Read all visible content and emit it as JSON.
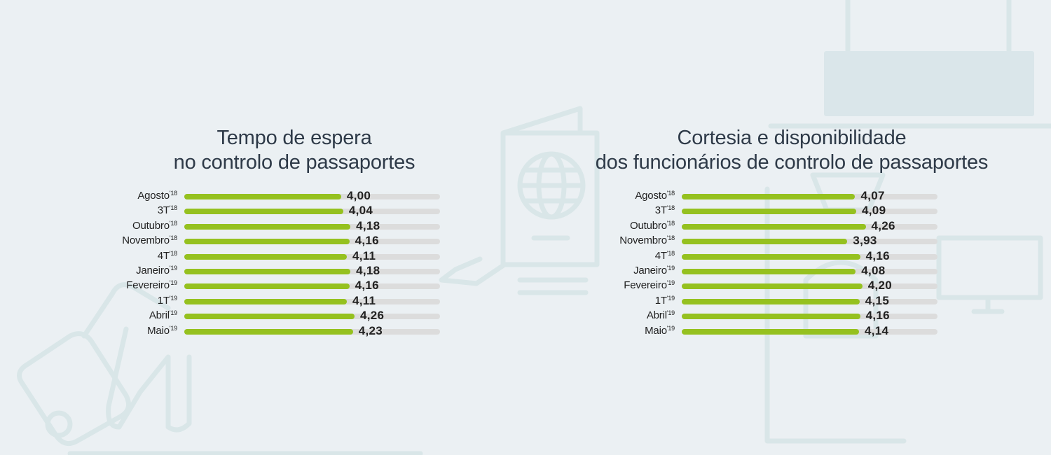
{
  "colors": {
    "bar": "#95c11f",
    "track": "#dcdcdc",
    "background": "#ebf0f3",
    "illustration": "#d9e6e8"
  },
  "chart_data": [
    {
      "type": "bar",
      "orientation": "horizontal",
      "title": [
        "Tempo de espera",
        "no controlo de passaportes"
      ],
      "categories": [
        {
          "name": "Agosto",
          "suffix": "'18"
        },
        {
          "name": "3T",
          "suffix": "'18"
        },
        {
          "name": "Outubro",
          "suffix": "'18"
        },
        {
          "name": "Novembro",
          "suffix": "'18"
        },
        {
          "name": "4T",
          "suffix": "'18"
        },
        {
          "name": "Janeiro",
          "suffix": "'19"
        },
        {
          "name": "Fevereiro",
          "suffix": "'19"
        },
        {
          "name": "1T",
          "suffix": "'19"
        },
        {
          "name": "Abril",
          "suffix": "'19"
        },
        {
          "name": "Maio",
          "suffix": "'19"
        }
      ],
      "values": [
        4.0,
        4.04,
        4.18,
        4.16,
        4.11,
        4.18,
        4.16,
        4.11,
        4.26,
        4.23
      ],
      "value_labels": [
        "4,00",
        "4,04",
        "4,18",
        "4,16",
        "4,11",
        "4,18",
        "4,16",
        "4,11",
        "4,26",
        "4,23"
      ],
      "xlim": [
        1,
        5
      ]
    },
    {
      "type": "bar",
      "orientation": "horizontal",
      "title": [
        "Cortesia e disponibilidade",
        "dos funcionários de controlo de passaportes"
      ],
      "categories": [
        {
          "name": "Agosto",
          "suffix": "'18"
        },
        {
          "name": "3T",
          "suffix": "'18"
        },
        {
          "name": "Outubro",
          "suffix": "'18"
        },
        {
          "name": "Novembro",
          "suffix": "'18"
        },
        {
          "name": "4T",
          "suffix": "'18"
        },
        {
          "name": "Janeiro",
          "suffix": "'19"
        },
        {
          "name": "Fevereiro",
          "suffix": "'19"
        },
        {
          "name": "1T",
          "suffix": "'19"
        },
        {
          "name": "Abril",
          "suffix": "'19"
        },
        {
          "name": "Maio",
          "suffix": "'19"
        }
      ],
      "values": [
        4.07,
        4.09,
        4.26,
        3.93,
        4.16,
        4.08,
        4.2,
        4.15,
        4.16,
        4.14
      ],
      "value_labels": [
        "4,07",
        "4,09",
        "4,26",
        "3,93",
        "4,16",
        "4,08",
        "4,20",
        "4,15",
        "4,16",
        "4,14"
      ],
      "xlim": [
        1,
        5
      ]
    }
  ]
}
